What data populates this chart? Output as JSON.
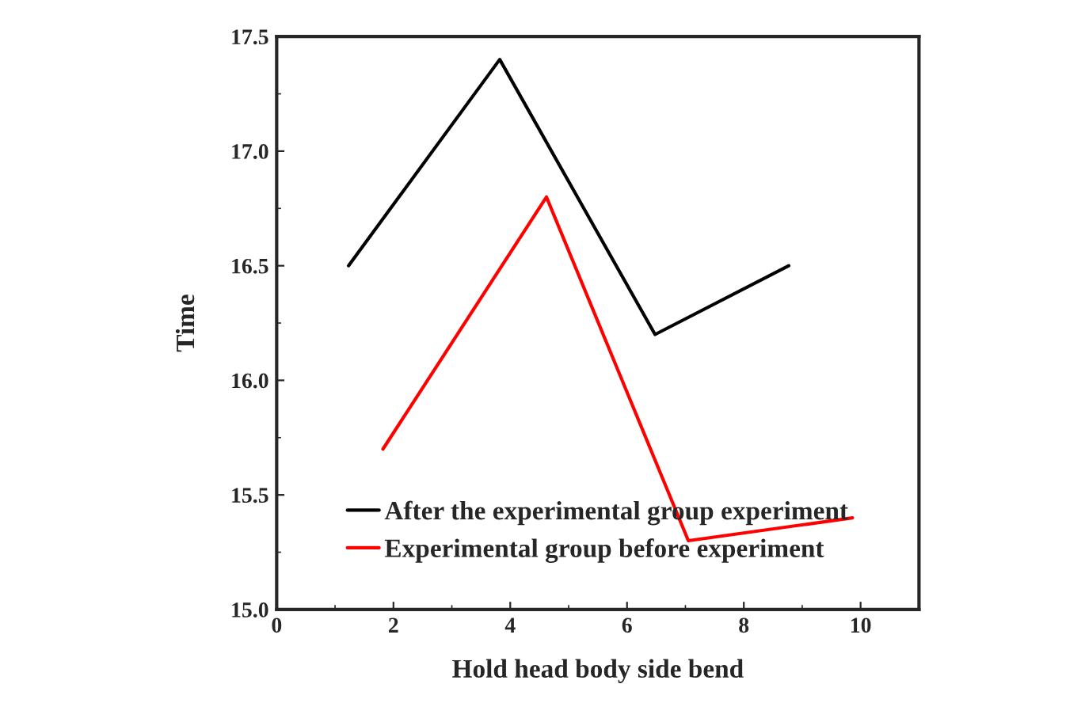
{
  "chart_data": {
    "type": "line",
    "xlabel": "Hold head body side bend",
    "ylabel": "Time",
    "xlim": [
      0,
      11
    ],
    "xticks": [
      0,
      2,
      4,
      6,
      8,
      10
    ],
    "ylim": [
      15.0,
      17.5
    ],
    "yticks": [
      {
        "value": 15.0,
        "label": "15.0"
      },
      {
        "value": 15.5,
        "label": "15.5"
      },
      {
        "value": 16.0,
        "label": "16.0"
      },
      {
        "value": 16.5,
        "label": "16.5"
      },
      {
        "value": 17.0,
        "label": "17.0"
      },
      {
        "value": 17.5,
        "label": "17.5"
      }
    ],
    "grid": false,
    "legend": "bottom",
    "marker": "none",
    "line_style": "solid",
    "series": [
      {
        "name": "After the experimental group experiment",
        "color": "#000000",
        "x": [
          1.23,
          3.82,
          6.48,
          8.77
        ],
        "values": [
          16.5,
          17.4,
          16.2,
          16.5
        ]
      },
      {
        "name": "Experimental group before experiment",
        "color": "#ff0000",
        "x": [
          1.82,
          4.62,
          7.05,
          9.86
        ],
        "values": [
          15.7,
          16.8,
          15.3,
          15.4
        ]
      }
    ]
  }
}
